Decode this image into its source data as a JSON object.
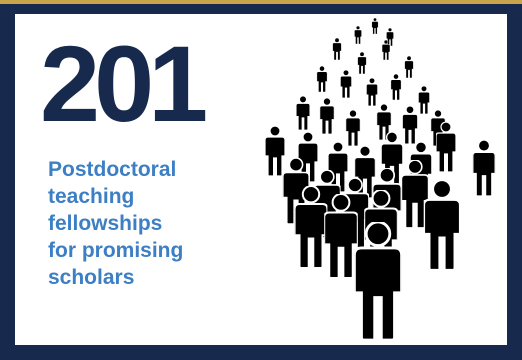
{
  "headline": {
    "number": "201",
    "caption_lines": [
      "Postdoctoral",
      "teaching",
      "fellowships",
      "for promising",
      "scholars"
    ]
  },
  "illustration": {
    "icon": "crowd-of-people-icon"
  },
  "colors": {
    "border": "#17294d",
    "accent_top": "#c9a44a",
    "number": "#17294d",
    "caption": "#3c7fc4",
    "figures": "#000000"
  }
}
